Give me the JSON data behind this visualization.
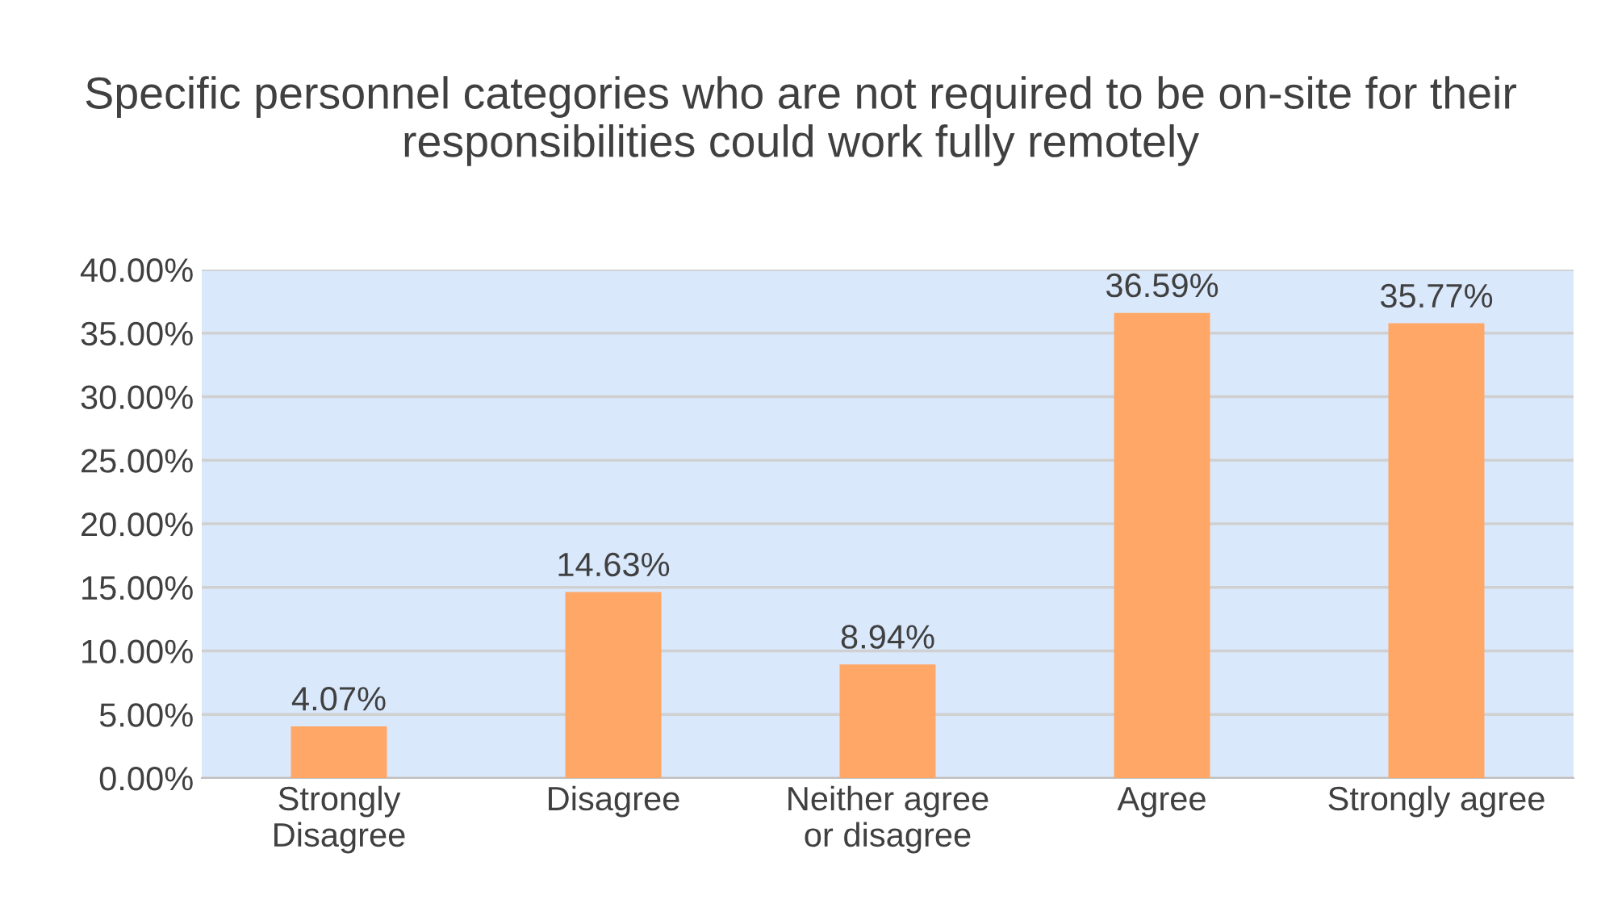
{
  "chart_data": {
    "type": "bar",
    "title": "Specific personnel categories who are not required to be on-site for their responsibilities could work fully remotely",
    "categories": [
      "Strongly\nDisagree",
      "Disagree",
      "Neither agree\nor disagree",
      "Agree",
      "Strongly agree"
    ],
    "values": [
      4.07,
      14.63,
      8.94,
      36.59,
      35.77
    ],
    "value_labels": [
      "4.07%",
      "14.63%",
      "8.94%",
      "36.59%",
      "35.77%"
    ],
    "color": "#ffa766",
    "ylim": [
      0,
      40
    ],
    "yticks": [
      {
        "value": 0,
        "label": "0.00%"
      },
      {
        "value": 5,
        "label": "5.00%"
      },
      {
        "value": 10,
        "label": "10.00%"
      },
      {
        "value": 15,
        "label": "15.00%"
      },
      {
        "value": 20,
        "label": "20.00%"
      },
      {
        "value": 25,
        "label": "25.00%"
      },
      {
        "value": 30,
        "label": "30.00%"
      },
      {
        "value": 35,
        "label": "35.00%"
      },
      {
        "value": 40,
        "label": "40.00%"
      }
    ],
    "grid": "y",
    "legend": false
  }
}
